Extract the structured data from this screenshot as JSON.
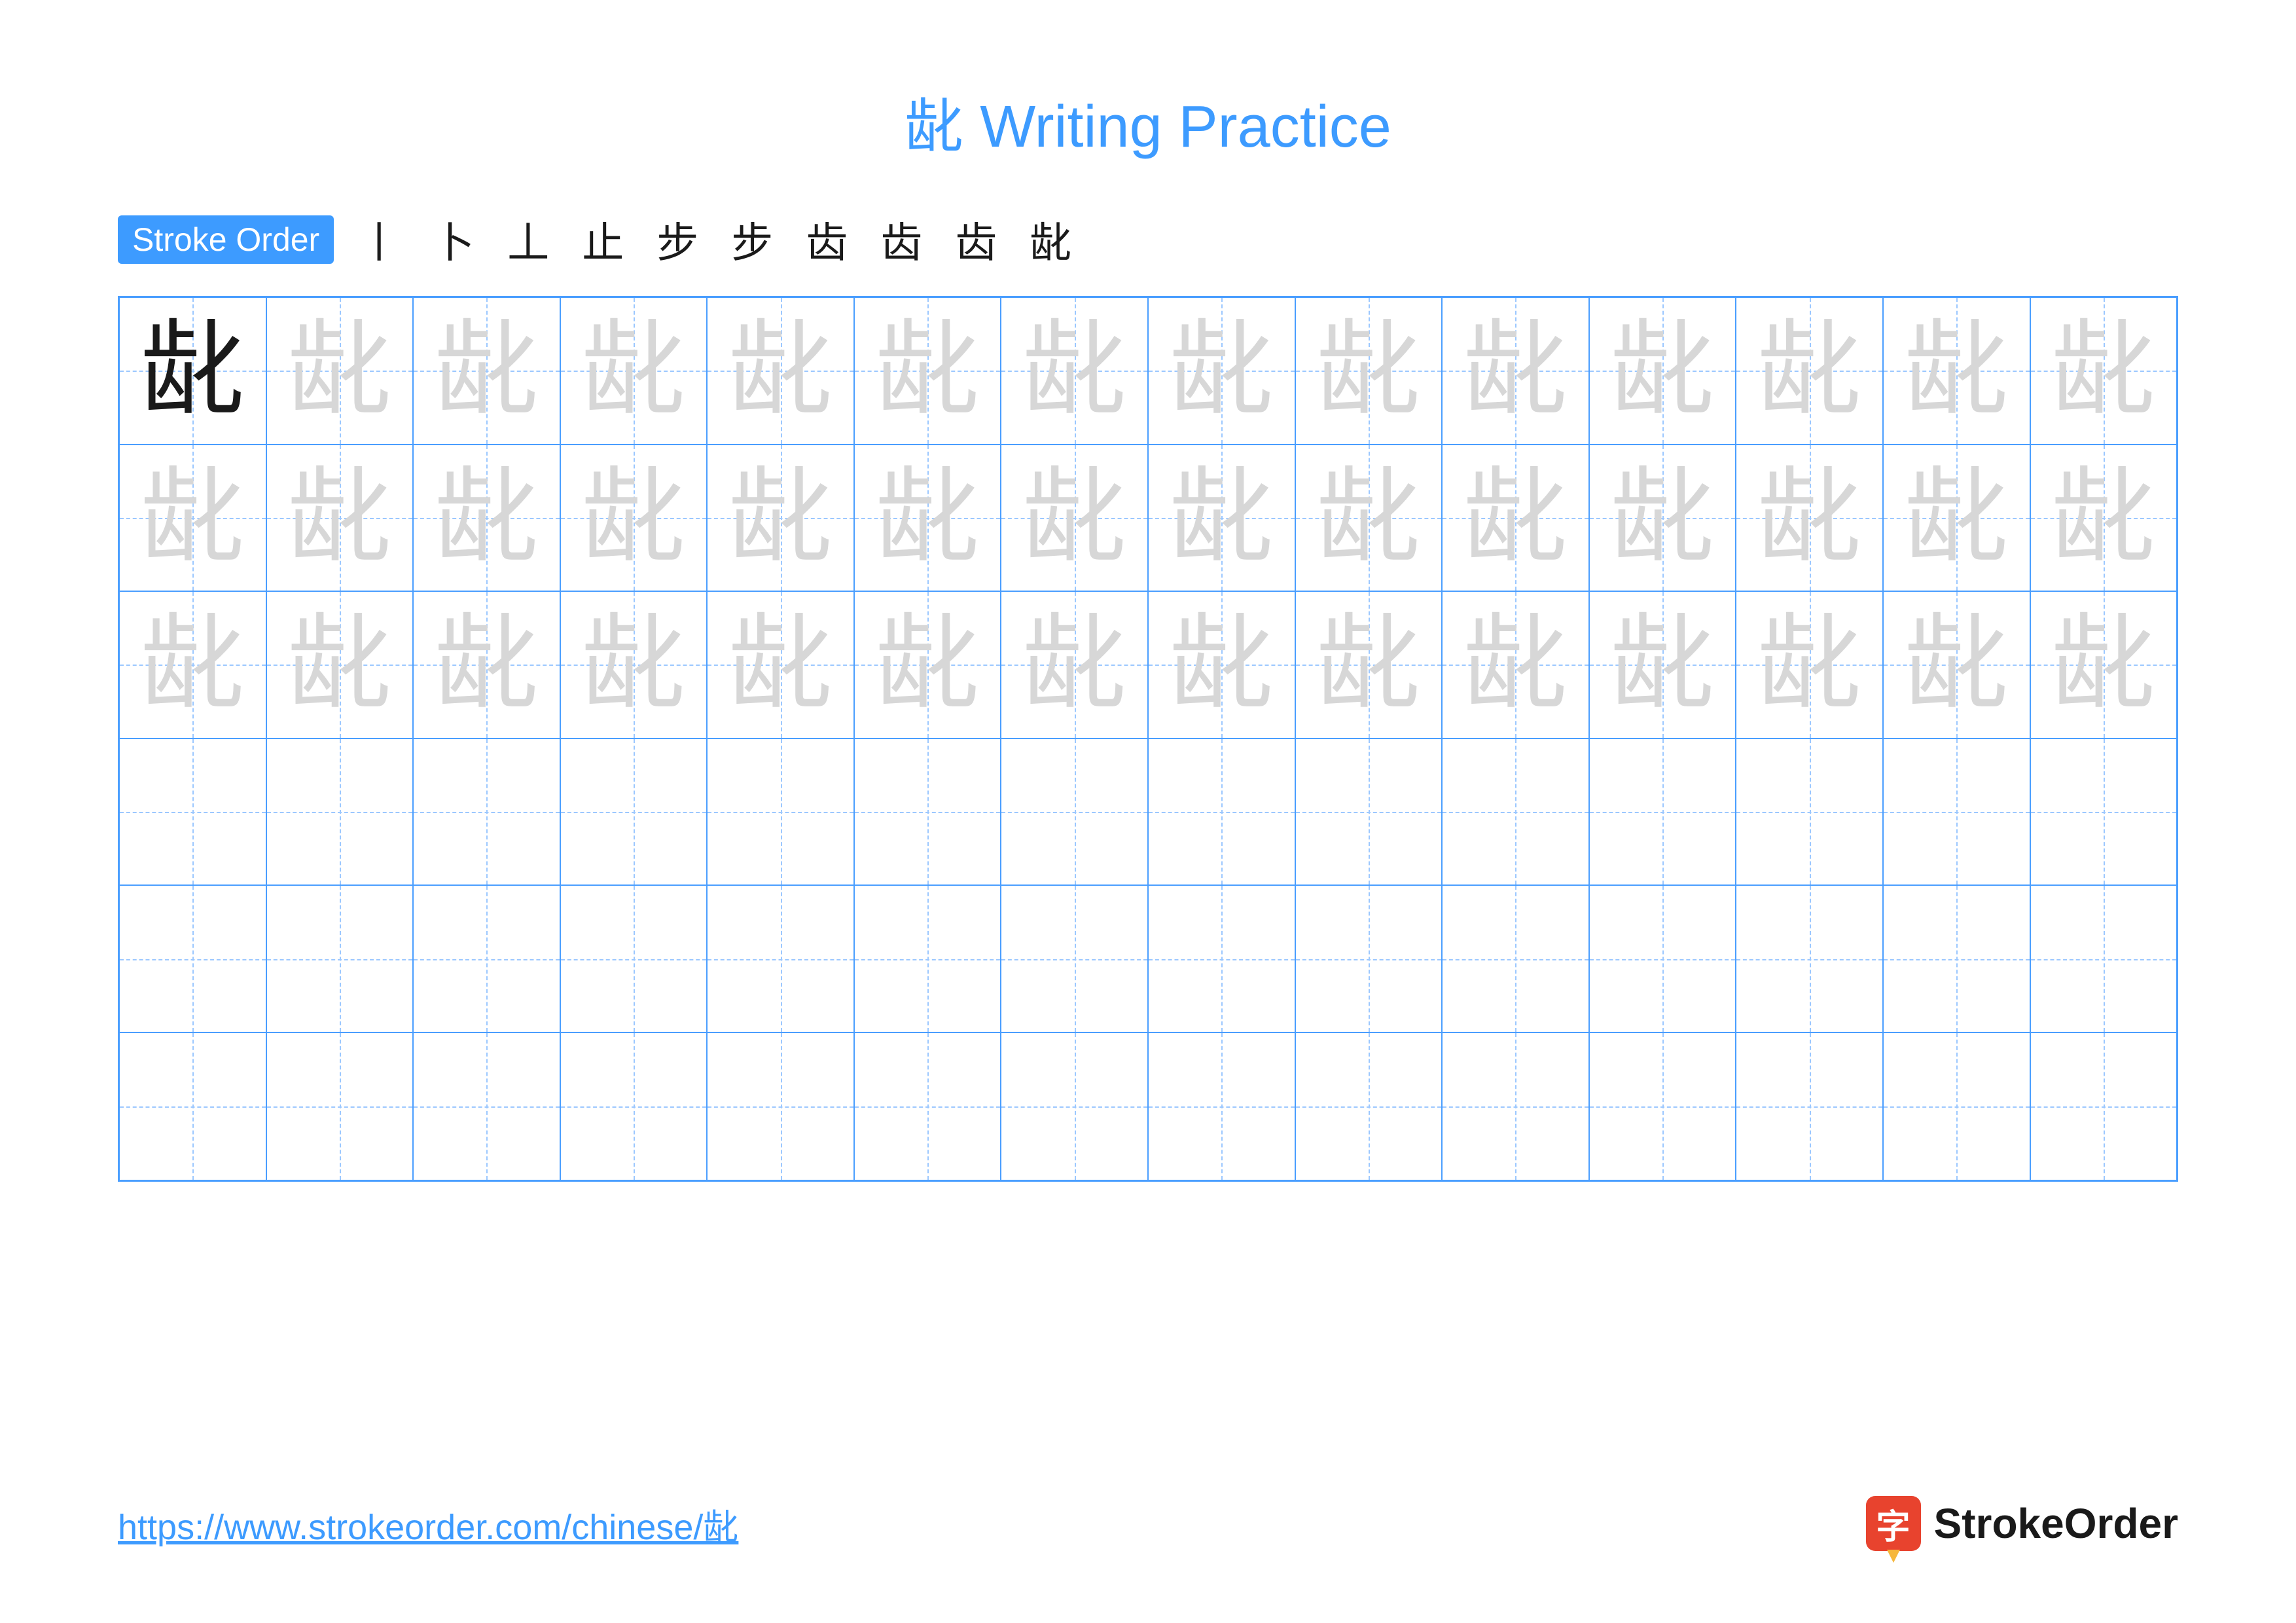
{
  "title": {
    "char": "龀",
    "text": "Writing Practice",
    "color": "#3d9bff"
  },
  "stroke": {
    "label": "Stroke Order",
    "label_bg": "#3d9bff",
    "steps_color": "#1a1a1a",
    "steps": [
      "丨",
      "卜",
      "丄",
      "止",
      "步",
      "步",
      "齿",
      "齿",
      "齿",
      "龀"
    ]
  },
  "grid": {
    "rows": 6,
    "cols": 14,
    "border_color": "#4a9eff",
    "guide_color": "#9cc8ff",
    "example_char": "龀",
    "example_color": "#1a1a1a",
    "trace_color": "#d7d7d7",
    "trace_rows": 3
  },
  "footer": {
    "url": "https://www.strokeorder.com/chinese/龀",
    "url_color": "#3d9bff",
    "brand_name": "StrokeOrder",
    "brand_icon_char": "字",
    "brand_icon_bg": "#e8432e"
  },
  "background": "#ffffff"
}
